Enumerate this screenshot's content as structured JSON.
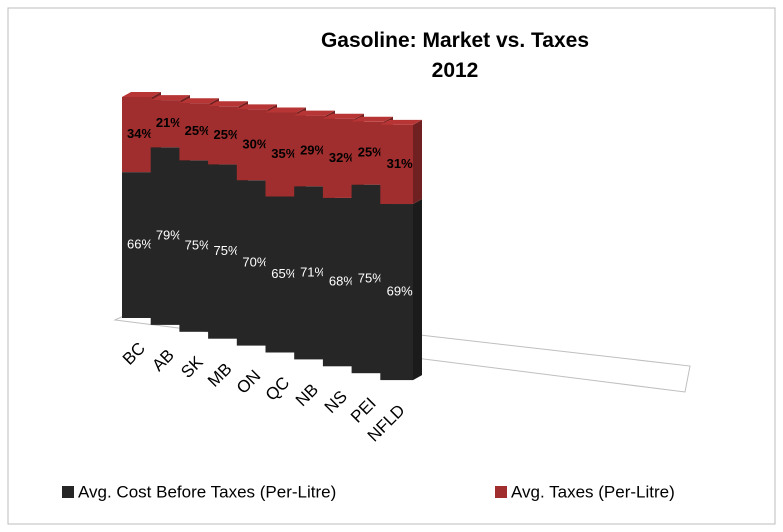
{
  "chart_data": {
    "type": "bar3d_stacked",
    "title": "Gasoline: Market vs. Taxes 2012",
    "categories": [
      "BC",
      "AB",
      "SK",
      "MB",
      "ON",
      "QC",
      "NB",
      "NS",
      "PEI",
      "NFLD"
    ],
    "series": [
      {
        "name": "Avg. Cost Before Taxes (Per-Litre)",
        "color": "#262626",
        "values": [
          66,
          79,
          75,
          75,
          70,
          65,
          71,
          68,
          75,
          69
        ],
        "value_labels": [
          "66%",
          "79%",
          "75%",
          "75%",
          "70%",
          "65%",
          "71%",
          "68%",
          "75%",
          "69%"
        ]
      },
      {
        "name": "Avg. Taxes (Per-Litre)",
        "color": "#a02e2e",
        "values": [
          34,
          21,
          25,
          25,
          30,
          35,
          29,
          32,
          25,
          31
        ],
        "value_labels": [
          "34%",
          "21%",
          "25%",
          "25%",
          "30%",
          "35%",
          "29%",
          "32%",
          "25%",
          "31%"
        ]
      }
    ],
    "legend": "bottom"
  }
}
